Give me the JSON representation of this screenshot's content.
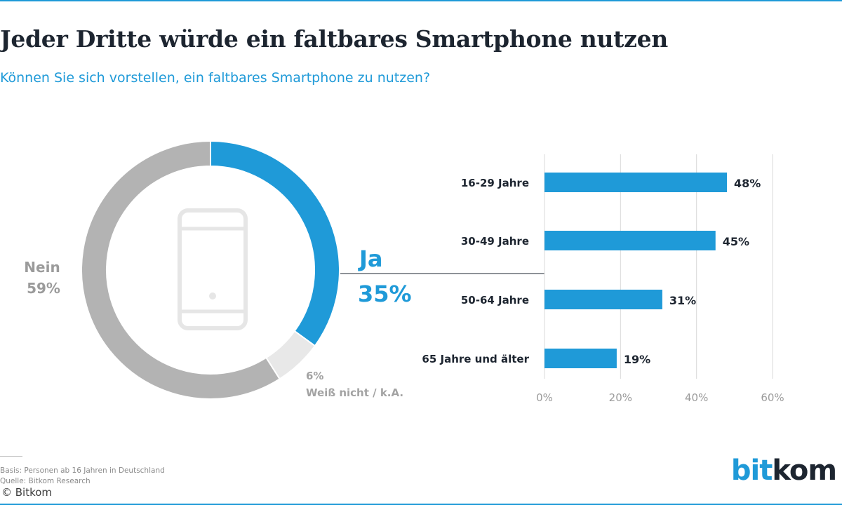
{
  "title": "Jeder Dritte würde ein faltbares Smartphone nutzen",
  "subtitle": "Können Sie sich vorstellen, ein faltbares Smartphone zu nutzen?",
  "colors": {
    "accent": "#1f9ad8",
    "nein": "#b3b3b3",
    "weiss_nicht": "#e8e8e8",
    "dark_text": "#1d2530",
    "grid": "#d9d9d9"
  },
  "chart_data": [
    {
      "type": "pie",
      "variant": "donut",
      "center_icon": "smartphone-icon",
      "slices": [
        {
          "key": "ja",
          "label": "Ja",
          "value": 35,
          "value_label": "35%"
        },
        {
          "key": "weiss_nicht",
          "label": "Weiß nicht / k.A.",
          "value": 6,
          "value_label": "6%"
        },
        {
          "key": "nein",
          "label": "Nein",
          "value": 59,
          "value_label": "59%"
        }
      ]
    },
    {
      "type": "bar",
      "orientation": "horizontal",
      "categories": [
        "16-29 Jahre",
        "30-49 Jahre",
        "50-64 Jahre",
        "65 Jahre und älter"
      ],
      "values": [
        48,
        45,
        31,
        19
      ],
      "value_labels": [
        "48%",
        "45%",
        "31%",
        "19%"
      ],
      "xlim": [
        0,
        60
      ],
      "xticks": [
        0,
        20,
        40,
        60
      ],
      "xtick_labels": [
        "0%",
        "20%",
        "40%",
        "60%"
      ],
      "grid": true
    }
  ],
  "footer": {
    "basis": "Basis: Personen ab 16 Jahren in Deutschland",
    "quelle": "Quelle: Bitkom Research",
    "copyright": "© Bitkom"
  },
  "logo": {
    "part1": "bit",
    "part2": "kom"
  }
}
